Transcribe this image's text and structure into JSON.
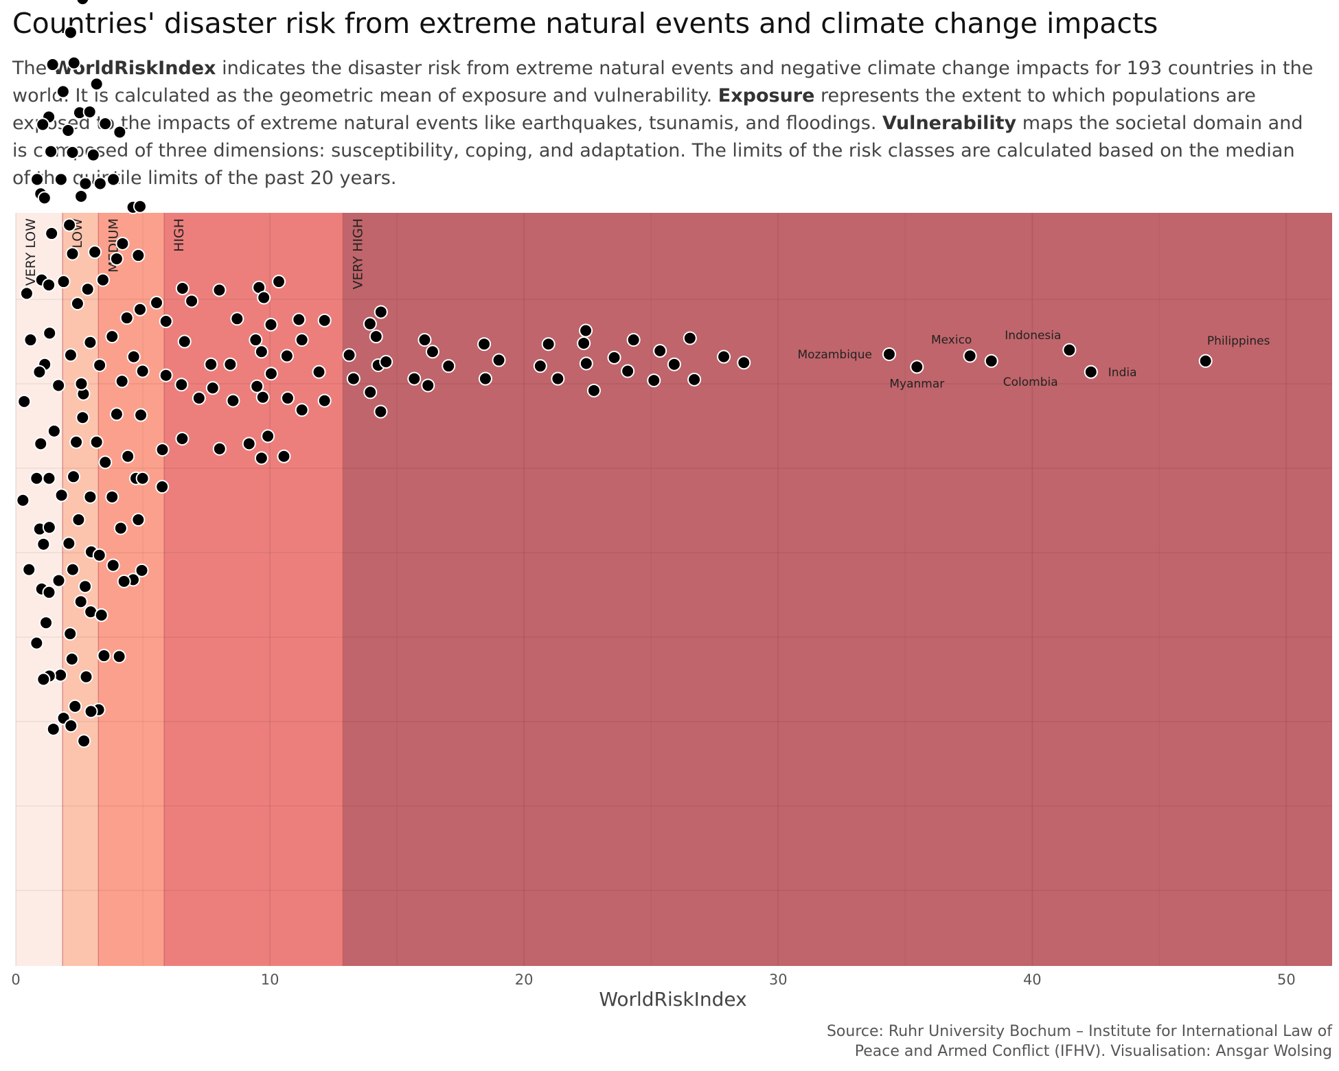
{
  "header": {
    "title": "Countries' disaster risk from extreme natural events and climate change impacts",
    "subtitle": [
      {
        "text": "The ",
        "bold": false
      },
      {
        "text": "WorldRiskIndex",
        "bold": true
      },
      {
        "text": " indicates the disaster risk from extreme natural events and negative climate change impacts for 193 countries in the world. It is calculated as the geometric mean of exposure and vulnerability. ",
        "bold": false
      },
      {
        "text": "Exposure",
        "bold": true
      },
      {
        "text": " represents the extent to which populations are exposed to the impacts of extreme natural events like earthquakes, tsunamis, and floodings. ",
        "bold": false
      },
      {
        "text": "Vulnerability",
        "bold": true
      },
      {
        "text": " maps the societal domain and is composed of three dimensions: susceptibility, coping, and adaptation. The limits of the risk classes are calculated based on the median of the quintile limits of the past 20 years.",
        "bold": false
      }
    ]
  },
  "footer": {
    "source_line1": "Source: Ruhr University Bochum – Institute for International Law of",
    "source_line2": "Peace and Armed Conflict (IFHV). Visualisation: Ansgar Wolsing"
  },
  "chart_data": {
    "type": "scatter",
    "style": "beeswarm",
    "xlabel": "WorldRiskIndex",
    "xlim": [
      0,
      51.8
    ],
    "xticks": [
      0,
      10,
      20,
      30,
      40,
      50
    ],
    "grid": true,
    "risk_classes": [
      {
        "label": "VERY LOW",
        "from": 0,
        "to": 1.84,
        "color": "#fdece6"
      },
      {
        "label": "LOW",
        "from": 1.84,
        "to": 3.25,
        "color": "#fcc3ad"
      },
      {
        "label": "MEDIUM",
        "from": 3.25,
        "to": 5.84,
        "color": "#fba08c"
      },
      {
        "label": "HIGH",
        "from": 5.84,
        "to": 12.87,
        "color": "#ec7f7c"
      },
      {
        "label": "VERY HIGH",
        "from": 12.87,
        "to": 51.8,
        "color": "#c0656b"
      }
    ],
    "points": [
      {
        "x": 2.63,
        "y": 7.56
      },
      {
        "x": 2.16,
        "y": 7.16
      },
      {
        "x": 1.45,
        "y": 6.78
      },
      {
        "x": 2.29,
        "y": 6.8
      },
      {
        "x": 1.86,
        "y": 6.46
      },
      {
        "x": 3.18,
        "y": 6.55
      },
      {
        "x": 2.51,
        "y": 6.21
      },
      {
        "x": 2.91,
        "y": 6.22
      },
      {
        "x": 1.3,
        "y": 6.16
      },
      {
        "x": 1.06,
        "y": 6.07
      },
      {
        "x": 3.52,
        "y": 6.08
      },
      {
        "x": 2.06,
        "y": 6.0
      },
      {
        "x": 4.09,
        "y": 5.98
      },
      {
        "x": 1.38,
        "y": 5.75
      },
      {
        "x": 2.23,
        "y": 5.74
      },
      {
        "x": 3.05,
        "y": 5.71
      },
      {
        "x": 0.84,
        "y": 5.42
      },
      {
        "x": 1.78,
        "y": 5.42
      },
      {
        "x": 2.74,
        "y": 5.37
      },
      {
        "x": 3.32,
        "y": 5.37
      },
      {
        "x": 3.84,
        "y": 5.42
      },
      {
        "x": 0.98,
        "y": 5.25
      },
      {
        "x": 1.13,
        "y": 5.2
      },
      {
        "x": 2.57,
        "y": 5.22
      },
      {
        "x": 4.61,
        "y": 5.09
      },
      {
        "x": 4.89,
        "y": 5.1
      },
      {
        "x": 2.11,
        "y": 4.88
      },
      {
        "x": 1.41,
        "y": 4.78
      },
      {
        "x": 4.2,
        "y": 4.66
      },
      {
        "x": 2.23,
        "y": 4.54
      },
      {
        "x": 3.11,
        "y": 4.56
      },
      {
        "x": 4.82,
        "y": 4.52
      },
      {
        "x": 3.97,
        "y": 4.48
      },
      {
        "x": 1.02,
        "y": 4.23
      },
      {
        "x": 1.3,
        "y": 4.17
      },
      {
        "x": 1.88,
        "y": 4.21
      },
      {
        "x": 3.43,
        "y": 4.23
      },
      {
        "x": 0.43,
        "y": 4.07
      },
      {
        "x": 2.83,
        "y": 4.12
      },
      {
        "x": 2.43,
        "y": 3.95
      },
      {
        "x": 5.54,
        "y": 3.96
      },
      {
        "x": 4.89,
        "y": 3.88
      },
      {
        "x": 4.37,
        "y": 3.78
      },
      {
        "x": 1.33,
        "y": 3.6
      },
      {
        "x": 3.79,
        "y": 3.56
      },
      {
        "x": 0.58,
        "y": 3.52
      },
      {
        "x": 2.93,
        "y": 3.49
      },
      {
        "x": 2.16,
        "y": 3.34
      },
      {
        "x": 1.14,
        "y": 3.23
      },
      {
        "x": 4.64,
        "y": 3.32
      },
      {
        "x": 3.3,
        "y": 3.22
      },
      {
        "x": 4.99,
        "y": 3.15
      },
      {
        "x": 0.93,
        "y": 3.14
      },
      {
        "x": 1.68,
        "y": 2.98
      },
      {
        "x": 4.18,
        "y": 3.03
      },
      {
        "x": 0.33,
        "y": 2.79
      },
      {
        "x": 2.63,
        "y": 2.6
      },
      {
        "x": 3.97,
        "y": 2.64
      },
      {
        "x": 4.92,
        "y": 2.63
      },
      {
        "x": 2.66,
        "y": 2.88
      },
      {
        "x": 2.58,
        "y": 3.0
      },
      {
        "x": 1.51,
        "y": 2.44
      },
      {
        "x": 0.98,
        "y": 2.29
      },
      {
        "x": 2.38,
        "y": 2.31
      },
      {
        "x": 4.41,
        "y": 2.14
      },
      {
        "x": 3.18,
        "y": 2.31
      },
      {
        "x": 3.52,
        "y": 2.07
      },
      {
        "x": 0.82,
        "y": 1.88
      },
      {
        "x": 1.31,
        "y": 1.88
      },
      {
        "x": 2.27,
        "y": 1.9
      },
      {
        "x": 4.73,
        "y": 1.88
      },
      {
        "x": 4.99,
        "y": 1.88
      },
      {
        "x": 1.8,
        "y": 1.68
      },
      {
        "x": 2.93,
        "y": 1.66
      },
      {
        "x": 3.79,
        "y": 1.66
      },
      {
        "x": 0.28,
        "y": 1.62
      },
      {
        "x": 5.76,
        "y": 1.78
      },
      {
        "x": 0.94,
        "y": 1.28
      },
      {
        "x": 1.32,
        "y": 1.3
      },
      {
        "x": 2.47,
        "y": 1.39
      },
      {
        "x": 4.82,
        "y": 1.39
      },
      {
        "x": 4.13,
        "y": 1.29
      },
      {
        "x": 1.09,
        "y": 1.1
      },
      {
        "x": 2.09,
        "y": 1.11
      },
      {
        "x": 2.97,
        "y": 1.01
      },
      {
        "x": 3.29,
        "y": 0.97
      },
      {
        "x": 3.83,
        "y": 0.85
      },
      {
        "x": 4.96,
        "y": 0.79
      },
      {
        "x": 0.52,
        "y": 0.8
      },
      {
        "x": 2.24,
        "y": 0.8
      },
      {
        "x": 4.62,
        "y": 0.68
      },
      {
        "x": 4.26,
        "y": 0.66
      },
      {
        "x": 1.69,
        "y": 0.67
      },
      {
        "x": 2.73,
        "y": 0.6
      },
      {
        "x": 1.02,
        "y": 0.57
      },
      {
        "x": 1.31,
        "y": 0.53
      },
      {
        "x": 2.56,
        "y": 0.42
      },
      {
        "x": 2.95,
        "y": 0.3
      },
      {
        "x": 3.37,
        "y": 0.26
      },
      {
        "x": 1.19,
        "y": 0.17
      },
      {
        "x": 2.14,
        "y": 0.04
      },
      {
        "x": 0.82,
        "y": -0.07
      },
      {
        "x": 3.47,
        "y": -0.22
      },
      {
        "x": 4.07,
        "y": -0.23
      },
      {
        "x": 2.21,
        "y": -0.26
      },
      {
        "x": 1.76,
        "y": -0.45
      },
      {
        "x": 1.32,
        "y": -0.46
      },
      {
        "x": 2.77,
        "y": -0.47
      },
      {
        "x": 1.09,
        "y": -0.5
      },
      {
        "x": 2.33,
        "y": -0.82
      },
      {
        "x": 3.26,
        "y": -0.86
      },
      {
        "x": 2.96,
        "y": -0.88
      },
      {
        "x": 1.88,
        "y": -0.96
      },
      {
        "x": 1.48,
        "y": -1.09
      },
      {
        "x": 2.17,
        "y": -1.05
      },
      {
        "x": 2.68,
        "y": -1.23
      },
      {
        "x": 6.56,
        "y": 4.13
      },
      {
        "x": 6.92,
        "y": 3.98
      },
      {
        "x": 8.01,
        "y": 4.11
      },
      {
        "x": 9.57,
        "y": 4.14
      },
      {
        "x": 9.76,
        "y": 4.02
      },
      {
        "x": 10.35,
        "y": 4.21
      },
      {
        "x": 5.91,
        "y": 3.74
      },
      {
        "x": 8.71,
        "y": 3.77
      },
      {
        "x": 10.04,
        "y": 3.7
      },
      {
        "x": 11.14,
        "y": 3.76
      },
      {
        "x": 12.15,
        "y": 3.75
      },
      {
        "x": 6.64,
        "y": 3.5
      },
      {
        "x": 9.44,
        "y": 3.52
      },
      {
        "x": 11.26,
        "y": 3.52
      },
      {
        "x": 9.67,
        "y": 3.38
      },
      {
        "x": 10.67,
        "y": 3.33
      },
      {
        "x": 7.68,
        "y": 3.23
      },
      {
        "x": 8.44,
        "y": 3.23
      },
      {
        "x": 11.93,
        "y": 3.14
      },
      {
        "x": 6.52,
        "y": 2.99
      },
      {
        "x": 9.49,
        "y": 2.97
      },
      {
        "x": 10.05,
        "y": 3.12
      },
      {
        "x": 5.91,
        "y": 3.1
      },
      {
        "x": 7.21,
        "y": 2.83
      },
      {
        "x": 8.55,
        "y": 2.8
      },
      {
        "x": 9.72,
        "y": 2.84
      },
      {
        "x": 10.7,
        "y": 2.83
      },
      {
        "x": 11.26,
        "y": 2.69
      },
      {
        "x": 12.15,
        "y": 2.8
      },
      {
        "x": 7.75,
        "y": 2.95
      },
      {
        "x": 6.55,
        "y": 2.35
      },
      {
        "x": 8.02,
        "y": 2.23
      },
      {
        "x": 9.18,
        "y": 2.29
      },
      {
        "x": 9.92,
        "y": 2.38
      },
      {
        "x": 5.77,
        "y": 2.22
      },
      {
        "x": 9.67,
        "y": 2.12
      },
      {
        "x": 10.55,
        "y": 2.14
      },
      {
        "x": 13.94,
        "y": 3.71
      },
      {
        "x": 14.37,
        "y": 3.85
      },
      {
        "x": 14.18,
        "y": 3.56
      },
      {
        "x": 13.12,
        "y": 3.34
      },
      {
        "x": 14.26,
        "y": 3.22
      },
      {
        "x": 14.57,
        "y": 3.26
      },
      {
        "x": 13.29,
        "y": 3.06
      },
      {
        "x": 13.95,
        "y": 2.9
      },
      {
        "x": 14.36,
        "y": 2.67
      },
      {
        "x": 15.68,
        "y": 3.06
      },
      {
        "x": 16.22,
        "y": 2.98
      },
      {
        "x": 16.09,
        "y": 3.52
      },
      {
        "x": 16.4,
        "y": 3.38
      },
      {
        "x": 17.03,
        "y": 3.21
      },
      {
        "x": 18.43,
        "y": 3.47
      },
      {
        "x": 18.48,
        "y": 3.06
      },
      {
        "x": 19.01,
        "y": 3.28
      },
      {
        "x": 20.64,
        "y": 3.21
      },
      {
        "x": 20.96,
        "y": 3.47
      },
      {
        "x": 21.33,
        "y": 3.06
      },
      {
        "x": 22.35,
        "y": 3.48
      },
      {
        "x": 22.43,
        "y": 3.63
      },
      {
        "x": 22.45,
        "y": 3.24
      },
      {
        "x": 22.75,
        "y": 2.92
      },
      {
        "x": 23.55,
        "y": 3.31
      },
      {
        "x": 24.08,
        "y": 3.15
      },
      {
        "x": 24.31,
        "y": 3.52
      },
      {
        "x": 25.11,
        "y": 3.04
      },
      {
        "x": 25.35,
        "y": 3.39
      },
      {
        "x": 25.91,
        "y": 3.23
      },
      {
        "x": 26.53,
        "y": 3.54
      },
      {
        "x": 26.7,
        "y": 3.05
      },
      {
        "x": 27.86,
        "y": 3.32
      },
      {
        "x": 28.65,
        "y": 3.25
      },
      {
        "x": 34.37,
        "y": 3.35,
        "label": "Mozambique",
        "label_pos": "left"
      },
      {
        "x": 35.46,
        "y": 3.2,
        "label": "Myanmar",
        "label_pos": "below"
      },
      {
        "x": 37.55,
        "y": 3.33,
        "label": "Mexico",
        "label_pos": "above"
      },
      {
        "x": 38.39,
        "y": 3.27,
        "label": "Colombia",
        "label_pos": "below-right"
      },
      {
        "x": 41.46,
        "y": 3.4,
        "label": "Indonesia",
        "label_pos": "above-left"
      },
      {
        "x": 42.31,
        "y": 3.14,
        "label": "India",
        "label_pos": "right"
      },
      {
        "x": 46.82,
        "y": 3.27,
        "label": "Philippines",
        "label_pos": "above-right"
      }
    ]
  }
}
